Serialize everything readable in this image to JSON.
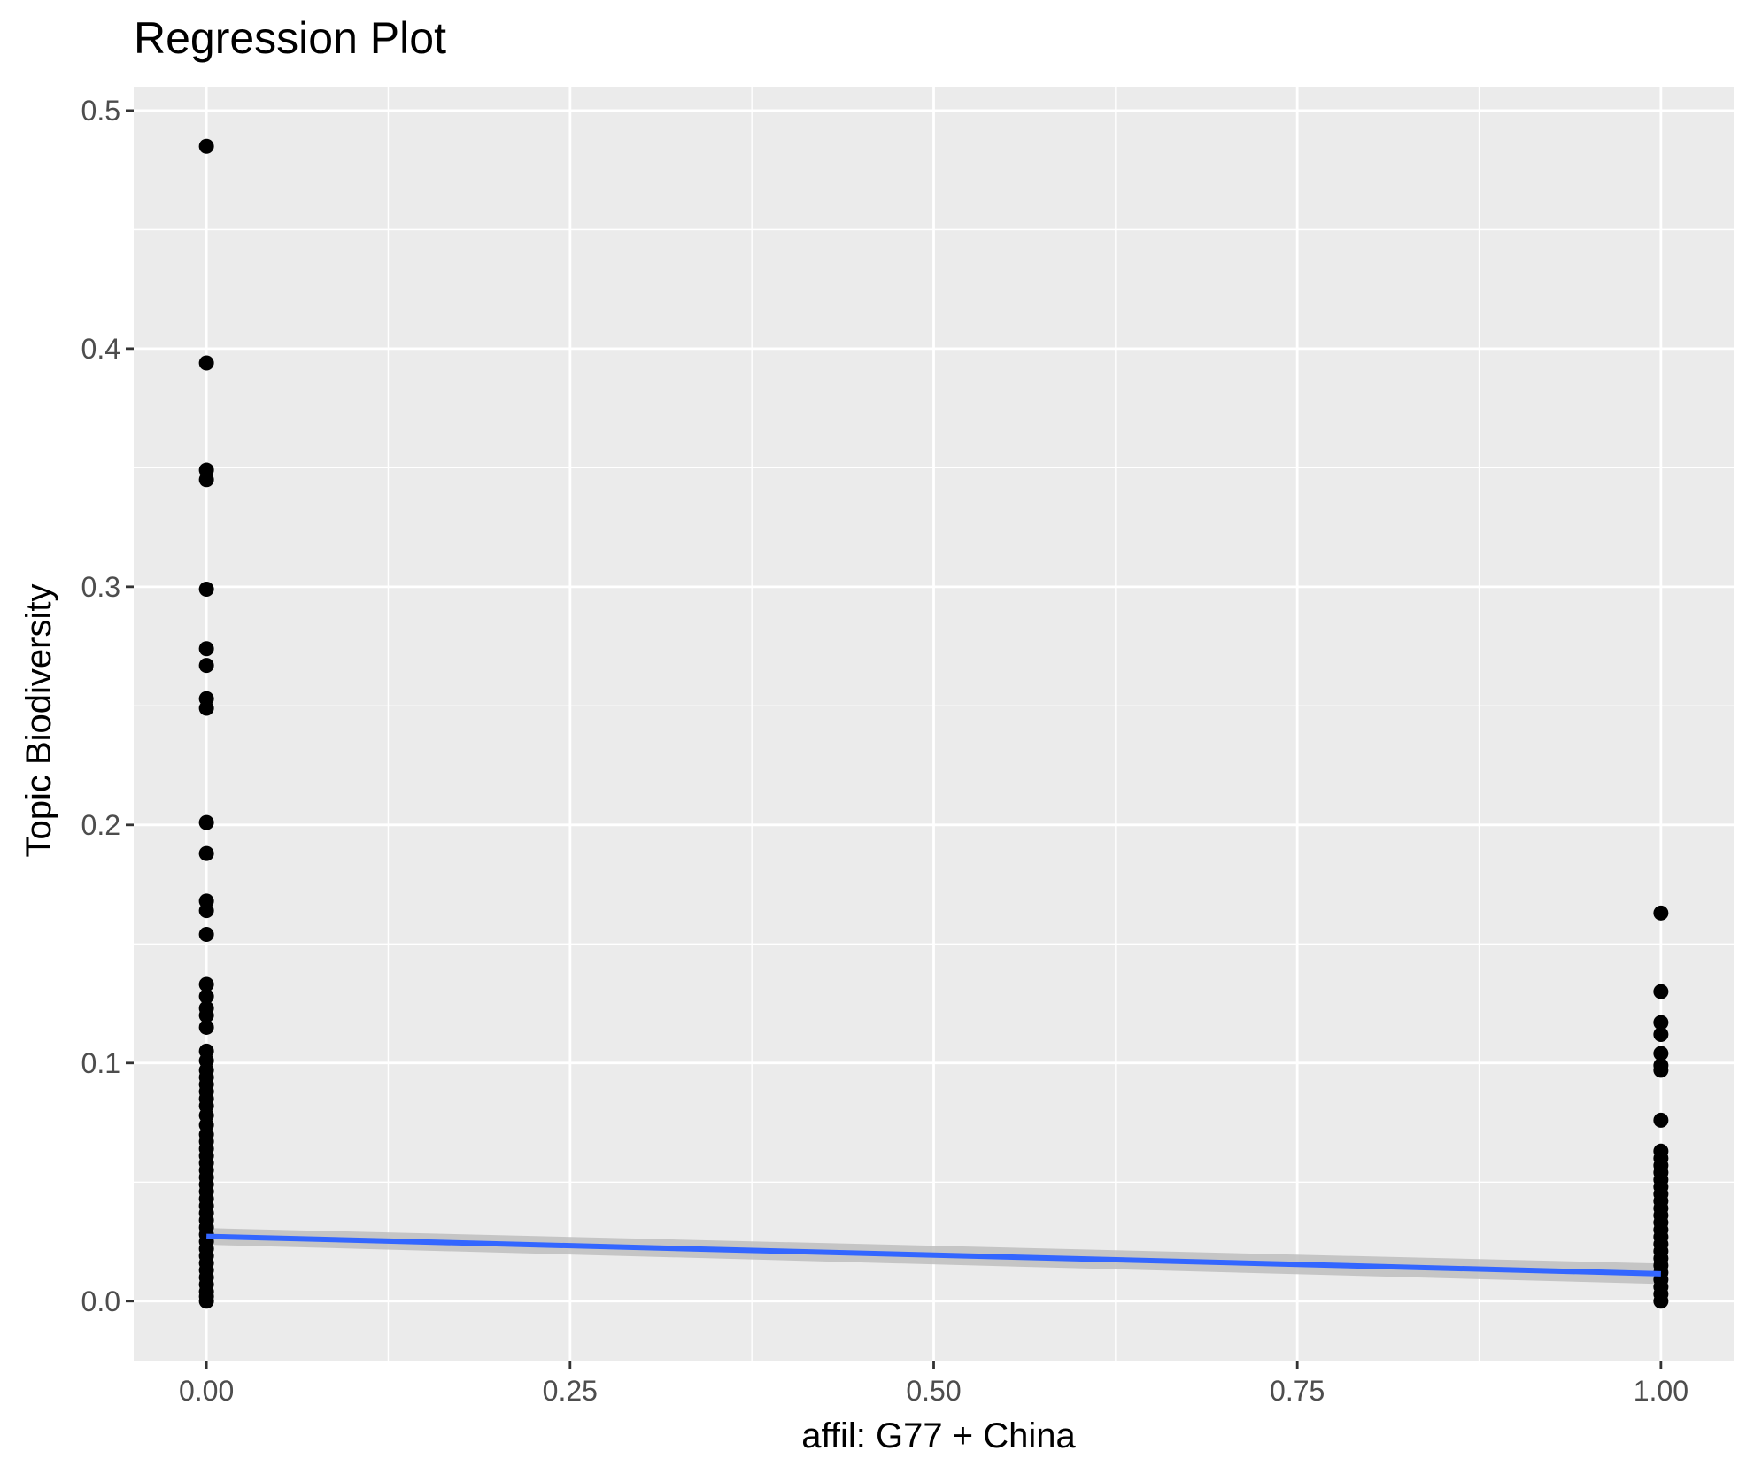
{
  "chart_data": {
    "type": "scatter",
    "title": "Regression Plot",
    "xlabel": "affil: G77 + China",
    "ylabel": "Topic Biodiversity",
    "xlim": [
      -0.05,
      1.05
    ],
    "ylim": [
      -0.025,
      0.51
    ],
    "grid": true,
    "x_ticks": [
      0.0,
      0.25,
      0.5,
      0.75,
      1.0
    ],
    "x_tick_labels": [
      "0.00",
      "0.25",
      "0.50",
      "0.75",
      "1.00"
    ],
    "y_ticks": [
      0.0,
      0.1,
      0.2,
      0.3,
      0.4,
      0.5
    ],
    "y_tick_labels": [
      "0.0",
      "0.1",
      "0.2",
      "0.3",
      "0.4",
      "0.5"
    ],
    "points": {
      "x0_y": [
        0.485,
        0.394,
        0.349,
        0.345,
        0.299,
        0.274,
        0.267,
        0.253,
        0.249,
        0.201,
        0.188,
        0.168,
        0.164,
        0.154,
        0.133,
        0.128,
        0.123,
        0.12,
        0.115,
        0.105,
        0.101,
        0.097,
        0.094,
        0.091,
        0.088,
        0.085,
        0.082,
        0.078,
        0.074,
        0.07,
        0.067,
        0.064,
        0.061,
        0.058,
        0.055,
        0.052,
        0.049,
        0.046,
        0.043,
        0.04,
        0.037,
        0.034,
        0.031,
        0.028,
        0.025,
        0.022,
        0.019,
        0.016,
        0.013,
        0.01,
        0.007,
        0.004,
        0.002,
        0.0
      ],
      "x1_y": [
        0.163,
        0.13,
        0.117,
        0.112,
        0.104,
        0.099,
        0.097,
        0.076,
        0.063,
        0.06,
        0.057,
        0.054,
        0.051,
        0.048,
        0.045,
        0.042,
        0.039,
        0.036,
        0.033,
        0.03,
        0.027,
        0.024,
        0.021,
        0.018,
        0.015,
        0.012,
        0.009,
        0.006,
        0.003,
        0.0
      ]
    },
    "regression": {
      "x": [
        0.0,
        1.0
      ],
      "y": [
        0.0272,
        0.0115
      ],
      "ci_halfwidth": [
        0.0035,
        0.0043
      ],
      "color": "#3366ff",
      "ci_color": "#bebebe"
    },
    "colors": {
      "panel": "#ebebeb",
      "grid": "#ffffff",
      "points": "#000000",
      "tick_text": "#4d4d4d",
      "tick_mark": "#333333"
    }
  }
}
